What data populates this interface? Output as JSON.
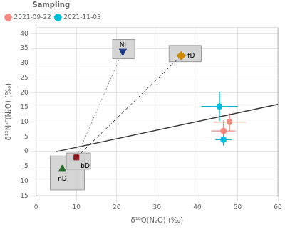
{
  "chart_data": {
    "type": "scatter",
    "xlabel": "δ¹⁸O(N₂O) (‰)",
    "ylabel": "δ¹⁵Nˢᴾ(N₂O) (‰)",
    "xlim": [
      0,
      60
    ],
    "ylim": [
      -15,
      42
    ],
    "xticks": [
      0,
      10,
      20,
      30,
      40,
      50,
      60
    ],
    "yticks": [
      -15,
      -10,
      -5,
      0,
      5,
      10,
      15,
      20,
      25,
      30,
      35,
      40
    ],
    "grid": true,
    "legend": "upper left",
    "legend_title": "Sampling",
    "series": [
      {
        "name": "2021-09-22",
        "color": "#f28b82",
        "marker": "circle",
        "x": [
          48.0,
          46.5
        ],
        "values": [
          10.0,
          7.0
        ],
        "xerr": [
          4.0,
          3.0
        ],
        "yerr": [
          3.0,
          3.5
        ]
      },
      {
        "name": "2021-11-03",
        "color": "#00bcd4",
        "marker": "circle",
        "x": [
          45.5,
          46.5
        ],
        "values": [
          15.3,
          4.0
        ],
        "xerr": [
          4.5,
          2.0
        ],
        "yerr": [
          5.0,
          2.0
        ]
      }
    ],
    "trendline": {
      "x": [
        5,
        60
      ],
      "values": [
        0.0,
        16.0
      ],
      "color": "#333333"
    },
    "end_members": [
      {
        "label": "nD",
        "x": 6.5,
        "y": -6.0,
        "color": "#2d6a2d",
        "marker": "triangle-up",
        "box_x": [
          3.5,
          12.0
        ],
        "box_y": [
          -13.0,
          -1.5
        ]
      },
      {
        "label": "bD",
        "x": 10.0,
        "y": -2.0,
        "color": "#8b1a1a",
        "marker": "square",
        "box_x": [
          7.5,
          13.5
        ],
        "box_y": [
          -6.0,
          -0.5
        ]
      },
      {
        "label": "Ni",
        "x": 21.5,
        "y": 34.0,
        "color": "#1a3a8b",
        "marker": "triangle-down",
        "box_x": [
          19.0,
          24.5
        ],
        "box_y": [
          31.5,
          38.0
        ]
      },
      {
        "label": "fD",
        "x": 36.0,
        "y": 32.5,
        "color": "#cc8800",
        "marker": "diamond",
        "box_x": [
          33.0,
          41.0
        ],
        "box_y": [
          30.5,
          36.0
        ]
      }
    ],
    "connectors": [
      {
        "from": "bD",
        "to": "Ni",
        "line_style": "dotted",
        "color": "#888888"
      },
      {
        "from": "bD",
        "to": "fD",
        "line_style": "dashed",
        "color": "#333333"
      }
    ]
  }
}
